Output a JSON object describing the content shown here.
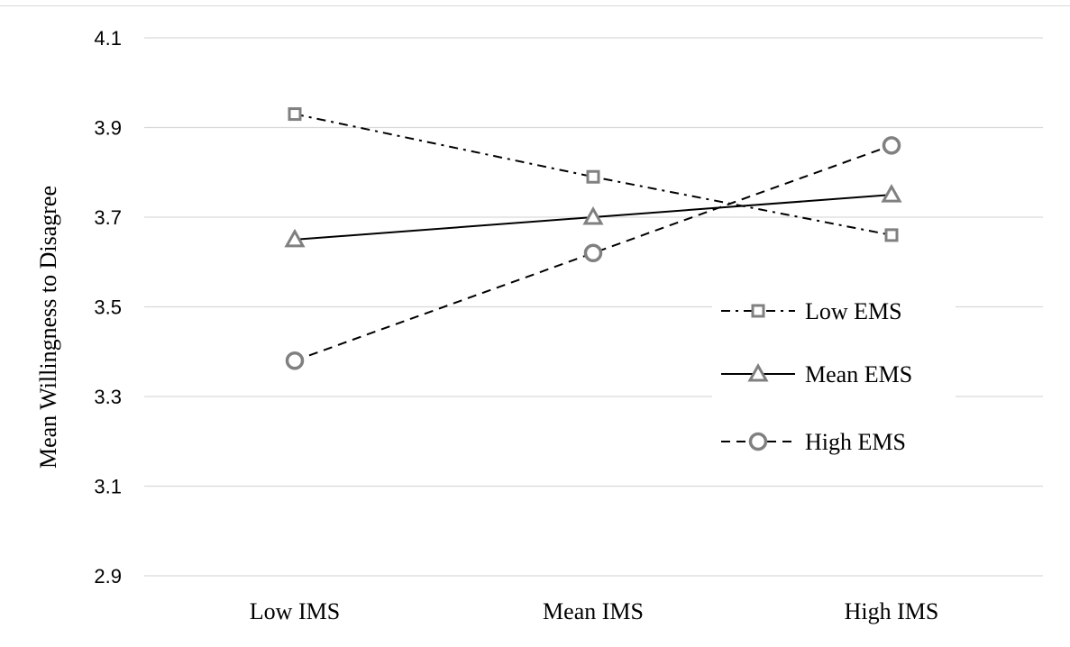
{
  "chart_data": {
    "type": "line",
    "title": "",
    "xlabel": "",
    "ylabel": "Mean Willingness to Disagree",
    "categories": [
      "Low IMS",
      "Mean IMS",
      "High IMS"
    ],
    "ylim": [
      2.9,
      4.1
    ],
    "yticks": [
      "2.9",
      "3.1",
      "3.3",
      "3.5",
      "3.7",
      "3.9",
      "4.1"
    ],
    "grid": true,
    "legend_position": "right",
    "series": [
      {
        "name": "Low EMS",
        "values": [
          3.93,
          3.79,
          3.66
        ],
        "marker": "square",
        "line_style": "dash-dot",
        "color": "#808080",
        "line_color": "#000000"
      },
      {
        "name": "Mean EMS",
        "values": [
          3.65,
          3.7,
          3.75
        ],
        "marker": "triangle",
        "line_style": "solid",
        "color": "#808080",
        "line_color": "#000000"
      },
      {
        "name": "High EMS",
        "values": [
          3.38,
          3.62,
          3.86
        ],
        "marker": "circle",
        "line_style": "dashed",
        "color": "#808080",
        "line_color": "#000000"
      }
    ]
  }
}
